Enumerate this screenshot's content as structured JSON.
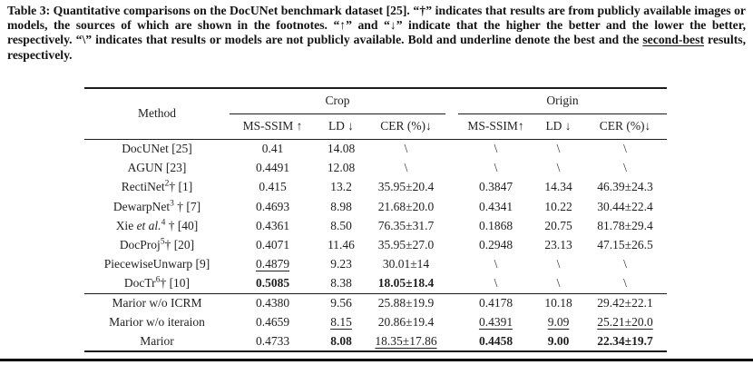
{
  "caption": {
    "before": "Table 3: Quantitative comparisons on the DocUNet benchmark dataset [25]. “†” indicates that results are from publicly available images or models, the sources of which are shown in the footnotes. “↑” and “↓” indicate that the higher the better and the lower the better, respectively. “\\” indicates that results or models are not publicly available. Bold and underline denote the best and the ",
    "underlined": "second-best",
    "after": " results, respectively."
  },
  "table": {
    "headers": {
      "method": "Method",
      "groups": [
        {
          "label": "Crop"
        },
        {
          "label": "Origin"
        }
      ],
      "metrics": [
        "MS-SSIM ↑",
        "LD ↓",
        "CER (%)↓",
        "MS-SSIM↑",
        "LD ↓",
        "CER (%)↓"
      ]
    },
    "sections": [
      {
        "rows": [
          {
            "method": [
              {
                "text": "DocUNet [25]"
              }
            ],
            "cells": [
              {
                "text": "0.41"
              },
              {
                "text": "14.08"
              },
              {
                "text": "\\"
              },
              {
                "text": "\\"
              },
              {
                "text": "\\"
              },
              {
                "text": "\\"
              }
            ]
          },
          {
            "method": [
              {
                "text": "AGUN [23]"
              }
            ],
            "cells": [
              {
                "text": "0.4491"
              },
              {
                "text": "12.08"
              },
              {
                "text": "\\"
              },
              {
                "text": "\\"
              },
              {
                "text": "\\"
              },
              {
                "text": "\\"
              }
            ]
          },
          {
            "method": [
              {
                "text": "RectiNet"
              },
              {
                "text": "2",
                "style": "sup"
              },
              {
                "text": "† [1]"
              }
            ],
            "cells": [
              {
                "text": "0.415"
              },
              {
                "text": "13.2"
              },
              {
                "text": "35.95±20.4"
              },
              {
                "text": "0.3847"
              },
              {
                "text": "14.34"
              },
              {
                "text": "46.39±24.3"
              }
            ]
          },
          {
            "method": [
              {
                "text": "DewarpNet"
              },
              {
                "text": "3",
                "style": "sup"
              },
              {
                "text": " † [7]"
              }
            ],
            "cells": [
              {
                "text": "0.4693"
              },
              {
                "text": "8.98"
              },
              {
                "text": "21.68±20.0"
              },
              {
                "text": "0.4341"
              },
              {
                "text": "10.22"
              },
              {
                "text": "30.44±22.4"
              }
            ]
          },
          {
            "method": [
              {
                "text": "Xie "
              },
              {
                "text": "et al.",
                "style": "italic"
              },
              {
                "text": "4",
                "style": "sup"
              },
              {
                "text": " † [40]"
              }
            ],
            "cells": [
              {
                "text": "0.4361"
              },
              {
                "text": "8.50"
              },
              {
                "text": "76.35±31.7"
              },
              {
                "text": "0.1868"
              },
              {
                "text": "20.75"
              },
              {
                "text": "81.78±29.4"
              }
            ]
          },
          {
            "method": [
              {
                "text": "DocProj"
              },
              {
                "text": "5",
                "style": "sup"
              },
              {
                "text": "† [20]"
              }
            ],
            "cells": [
              {
                "text": "0.4071"
              },
              {
                "text": "11.46"
              },
              {
                "text": "35.95±27.0"
              },
              {
                "text": "0.2948"
              },
              {
                "text": "23.13"
              },
              {
                "text": "47.15±26.5"
              }
            ]
          },
          {
            "method": [
              {
                "text": "PiecewiseUnwarp [9]"
              }
            ],
            "cells": [
              {
                "text": "0.4879",
                "style": "underline"
              },
              {
                "text": "9.23"
              },
              {
                "text": "30.01±14"
              },
              {
                "text": "\\"
              },
              {
                "text": "\\"
              },
              {
                "text": "\\"
              }
            ]
          },
          {
            "method": [
              {
                "text": "DocTr"
              },
              {
                "text": "6",
                "style": "sup"
              },
              {
                "text": "† [10]"
              }
            ],
            "cells": [
              {
                "text": "0.5085",
                "style": "bold"
              },
              {
                "text": "8.38"
              },
              {
                "text": "18.05±18.4",
                "style": "bold"
              },
              {
                "text": "\\"
              },
              {
                "text": "\\"
              },
              {
                "text": "\\"
              }
            ]
          }
        ]
      },
      {
        "rows": [
          {
            "method": [
              {
                "text": "Marior w/o ICRM"
              }
            ],
            "cells": [
              {
                "text": "0.4380"
              },
              {
                "text": "9.56"
              },
              {
                "text": "25.88±19.9"
              },
              {
                "text": "0.4178"
              },
              {
                "text": "10.18"
              },
              {
                "text": "29.42±22.1"
              }
            ]
          },
          {
            "method": [
              {
                "text": "Marior w/o iteraion"
              }
            ],
            "cells": [
              {
                "text": "0.4659"
              },
              {
                "text": "8.15",
                "style": "underline"
              },
              {
                "text": "20.86±19.4"
              },
              {
                "text": "0.4391",
                "style": "underline"
              },
              {
                "text": "9.09",
                "style": "underline"
              },
              {
                "text": "25.21±20.0",
                "style": "underline"
              }
            ]
          },
          {
            "method": [
              {
                "text": "Marior"
              }
            ],
            "cells": [
              {
                "text": "0.4733"
              },
              {
                "text": "8.08",
                "style": "bold"
              },
              {
                "text": "18.35±17.86",
                "style": "underline"
              },
              {
                "text": "0.4458",
                "style": "bold"
              },
              {
                "text": "9.00",
                "style": "bold"
              },
              {
                "text": "22.34±19.7",
                "style": "bold"
              }
            ]
          }
        ]
      }
    ]
  },
  "colors": {
    "text": "#1a1a1a",
    "rule": "#1c1c1c",
    "divider": "#000000"
  }
}
